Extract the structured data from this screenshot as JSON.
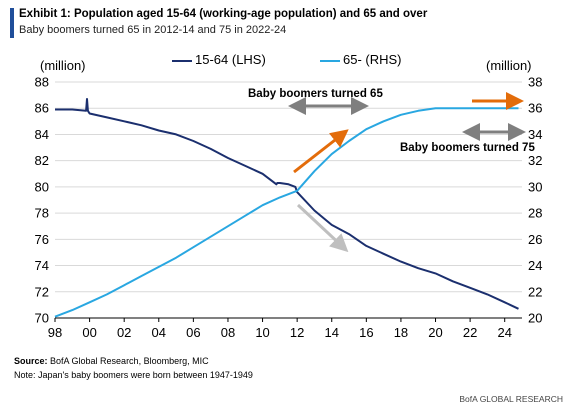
{
  "header": {
    "title": "Exhibit 1: Population aged 15-64 (working-age population) and 65 and over",
    "subtitle": "Baby boomers turned 65 in 2012-14 and 75 in 2022-24"
  },
  "footer": {
    "source_label": "Source:",
    "source_text": " BofA Global Research, Bloomberg, MIC",
    "note": "Note: Japan's baby boomers were born between 1947-1949",
    "brand": "BofA GLOBAL RESEARCH"
  },
  "colors": {
    "lhs_series": "#1b2f6e",
    "rhs_series": "#29a7e1",
    "orange_arrow": "#e36c0a",
    "gray_arrow": "#7f7f7f",
    "light_gray_arrow": "#bfbfbf",
    "grid": "#d9d9d9",
    "title_bar": "#1f4e9a"
  },
  "chart_data": {
    "type": "line",
    "left_unit": "(million)",
    "right_unit": "(million)",
    "x_tick_labels": [
      "98",
      "00",
      "02",
      "04",
      "06",
      "08",
      "10",
      "12",
      "14",
      "16",
      "18",
      "20",
      "22",
      "24"
    ],
    "x_ticks": [
      1998,
      2000,
      2002,
      2004,
      2006,
      2008,
      2010,
      2012,
      2014,
      2016,
      2018,
      2020,
      2022,
      2024
    ],
    "xlim": [
      1998,
      2025
    ],
    "left_axis": {
      "ylim": [
        70,
        88
      ],
      "ticks": [
        70,
        72,
        74,
        76,
        78,
        80,
        82,
        84,
        86,
        88
      ]
    },
    "right_axis": {
      "ylim": [
        20,
        38
      ],
      "ticks": [
        20,
        22,
        24,
        26,
        28,
        30,
        32,
        34,
        36,
        38
      ]
    },
    "grid": "horizontal",
    "legend_position": "top-center",
    "series": [
      {
        "name": "15-64 (LHS)",
        "axis": "left",
        "x": [
          1998,
          1999,
          1999.8,
          1999.85,
          1999.9,
          2000,
          2001,
          2002,
          2003,
          2004,
          2005,
          2006,
          2007,
          2008,
          2009,
          2010,
          2010.8,
          2010.85,
          2011,
          2011.5,
          2011.9,
          2012,
          2013,
          2014,
          2015,
          2016,
          2017,
          2018,
          2019,
          2020,
          2021,
          2022,
          2023,
          2024,
          2024.8
        ],
        "values": [
          85.9,
          85.9,
          85.8,
          86.7,
          85.8,
          85.6,
          85.3,
          85.0,
          84.7,
          84.3,
          84.0,
          83.5,
          82.9,
          82.2,
          81.6,
          81.0,
          80.2,
          80.3,
          80.3,
          80.2,
          80.0,
          79.6,
          78.2,
          77.1,
          76.4,
          75.5,
          74.9,
          74.3,
          73.8,
          73.4,
          72.8,
          72.3,
          71.8,
          71.2,
          70.7
        ]
      },
      {
        "name": "65- (RHS)",
        "axis": "right",
        "x": [
          1998,
          1999,
          2000,
          2001,
          2002,
          2003,
          2004,
          2005,
          2006,
          2007,
          2008,
          2009,
          2010,
          2011,
          2012,
          2013,
          2014,
          2015,
          2016,
          2017,
          2018,
          2019,
          2020,
          2021,
          2022,
          2023,
          2024,
          2024.8
        ],
        "values": [
          20.1,
          20.6,
          21.2,
          21.8,
          22.5,
          23.2,
          23.9,
          24.6,
          25.4,
          26.2,
          27.0,
          27.8,
          28.6,
          29.2,
          29.7,
          31.2,
          32.5,
          33.5,
          34.4,
          35.0,
          35.5,
          35.8,
          36.0,
          36.0,
          36.0,
          36.0,
          36.0,
          36.0
        ]
      }
    ],
    "annotations": [
      {
        "text": "Baby boomers turned 65"
      },
      {
        "text": "Baby boomers turned 75"
      }
    ]
  }
}
